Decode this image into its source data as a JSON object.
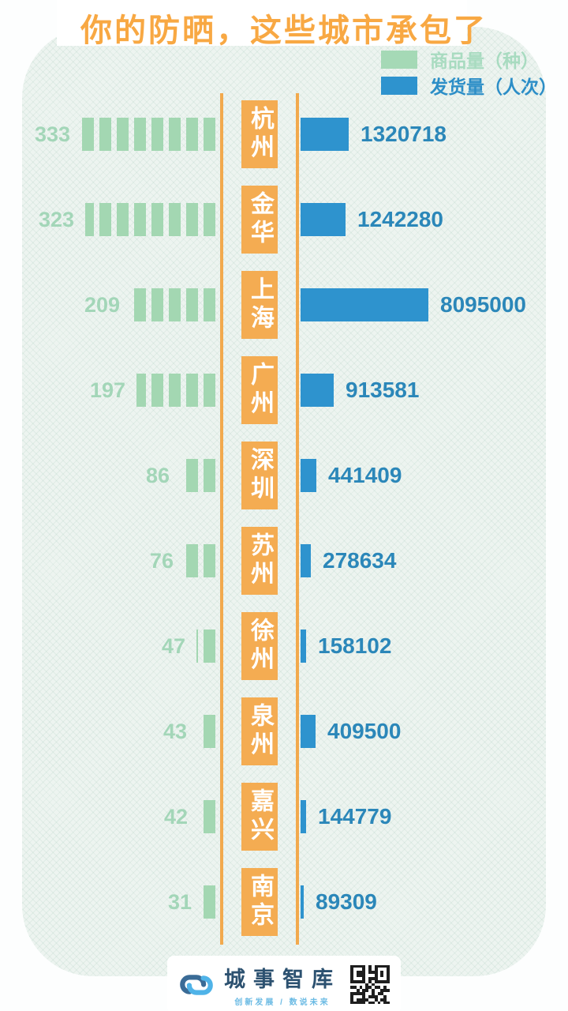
{
  "title": "你的防晒，这些城市承包了",
  "legend": {
    "products_label": "商品量（种）",
    "shipments_label": "发货量（人次）"
  },
  "colors": {
    "orange_accent": "#f4ac52",
    "green_series": "#a3d7b2",
    "blue_series": "#2e93ce",
    "green_text": "#a3d6b8",
    "blue_text": "#2b87b9",
    "title_orange": "#f8a843",
    "panel_bg": "#edf4f0",
    "brand_navy": "#2c5170",
    "brand_lightblue": "#6cbbe4"
  },
  "chart_data": {
    "type": "bar",
    "orientation": "horizontal-back-to-back",
    "title": "你的防晒，这些城市承包了",
    "categories": [
      "杭州",
      "金华",
      "上海",
      "广州",
      "深圳",
      "苏州",
      "徐州",
      "泉州",
      "嘉兴",
      "南京"
    ],
    "series": [
      {
        "name": "商品量（种）",
        "side": "left",
        "color": "#a3d7b2",
        "values": [
          333,
          323,
          209,
          197,
          86,
          76,
          47,
          43,
          42,
          31
        ]
      },
      {
        "name": "发货量（人次）",
        "side": "right",
        "color": "#2e93ce",
        "values": [
          1320718,
          1242280,
          8095000,
          913581,
          441409,
          278634,
          158102,
          409500,
          144779,
          89309
        ]
      }
    ],
    "legend_position": "top-right",
    "grid": false,
    "value_labels": "at-bar-ends"
  },
  "footer": {
    "brand": "城事智库",
    "tagline": "创新发展 / 数说未来",
    "qr_code": "qr-code"
  }
}
